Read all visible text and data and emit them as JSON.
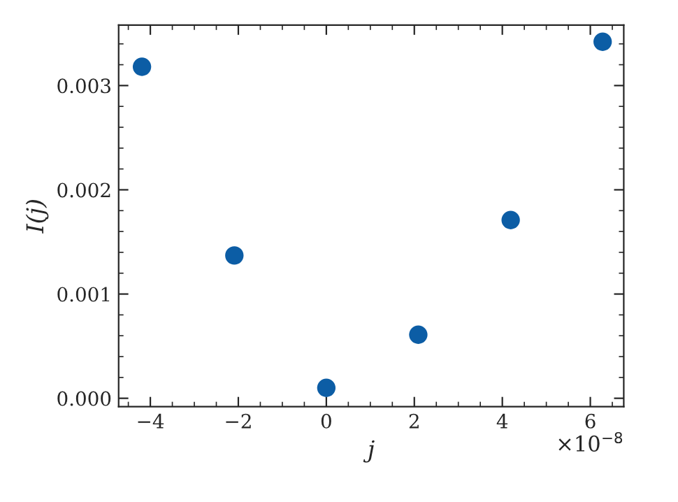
{
  "chart_data": {
    "type": "scatter",
    "xlabel": "j",
    "ylabel": "I(j)",
    "x": [
      -4.19,
      -2.09,
      0,
      2.09,
      4.19,
      6.28
    ],
    "series": [
      {
        "color": "#0c5da5",
        "values": [
          0.00318,
          0.00137,
          0.0001,
          0.00061,
          0.00171,
          0.00342
        ]
      }
    ],
    "xlim": [
      -4.72,
      6.76
    ],
    "xticks": [
      -4,
      -2,
      0,
      2,
      4,
      6
    ],
    "ylim": [
      -8e-05,
      0.00358
    ],
    "yticks": [
      {
        "value": 0,
        "label": "0.000"
      },
      {
        "value": 0.001,
        "label": "0.001"
      },
      {
        "value": 0.002,
        "label": "0.002"
      },
      {
        "value": 0.003,
        "label": "0.003"
      }
    ],
    "annotations": [
      "×10$^{−8}$"
    ],
    "marker": "circle",
    "grid": false
  }
}
